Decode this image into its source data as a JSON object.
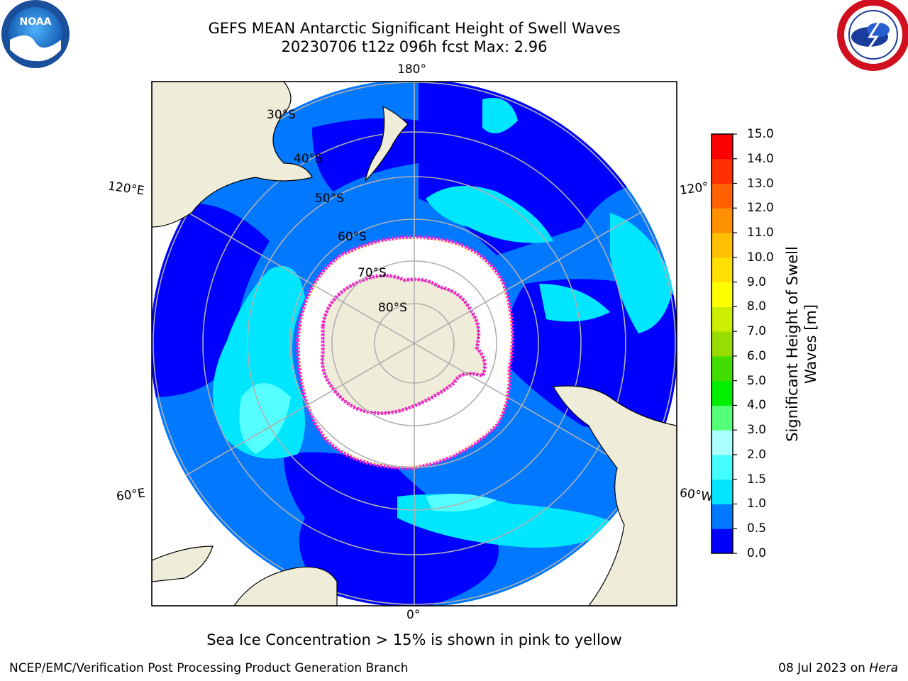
{
  "title": {
    "line1": "GEFS MEAN Antarctic Significant Height of Swell Waves",
    "line2": "20230706 t12z 096h fcst   Max: 2.96"
  },
  "map": {
    "projection": "south polar stereographic",
    "longitude_labels": {
      "top": "180°",
      "bottom": "0°",
      "left_upper": "120°E",
      "left_lower": "60°E",
      "right_upper": "120°",
      "right_lower": "60°W"
    },
    "latitude_labels": [
      "30°S",
      "40°S",
      "50°S",
      "60°S",
      "70°S",
      "80°S"
    ],
    "colors": {
      "land": "#efedd9",
      "ice": "#ffffff",
      "ice_edge": "#ff22cc",
      "ice_edge_yellow": "#ffcc33",
      "grid": "#b0b0b0"
    }
  },
  "colorbar": {
    "label_line1": "Significant Height of Swell",
    "label_line2": "Waves [m]",
    "ticks": [
      "15.0",
      "14.0",
      "13.0",
      "12.0",
      "11.0",
      "10.0",
      "9.0",
      "8.0",
      "7.0",
      "6.0",
      "5.0",
      "4.0",
      "3.0",
      "2.0",
      "1.5",
      "1.0",
      "0.5",
      "0.0"
    ],
    "colors_bottom_to_top": [
      "#0000ff",
      "#0078ff",
      "#00e6ff",
      "#44ffff",
      "#aaffff",
      "#55ff77",
      "#00ee00",
      "#44dd00",
      "#99dd00",
      "#ccee00",
      "#ffff00",
      "#ffe000",
      "#ffc000",
      "#ff9000",
      "#ff6000",
      "#ff3000",
      "#ff0000"
    ]
  },
  "logos": {
    "left": "NOAA",
    "right": "NATIONAL WEATHER SERVICE"
  },
  "footer": {
    "note": "Sea Ice Concentration > 15% is shown in pink to yellow",
    "credit": "NCEP/EMC/Verification Post Processing Product Generation Branch",
    "date_prefix": "08 Jul 2023 on ",
    "date_host": "Hera"
  }
}
